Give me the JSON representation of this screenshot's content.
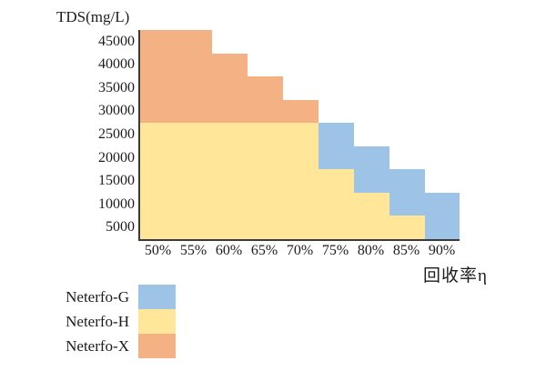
{
  "chart_data": {
    "type": "area",
    "variant": "stacked-step-bands",
    "title": "TDS(mg/L)",
    "xlabel": "回收率η",
    "categories": [
      "50%",
      "55%",
      "60%",
      "65%",
      "70%",
      "75%",
      "80%",
      "85%",
      "90%"
    ],
    "ylim": [
      2500,
      47500
    ],
    "yticks": [
      45000,
      40000,
      35000,
      30000,
      25000,
      20000,
      15000,
      10000,
      5000
    ],
    "grid": false,
    "legend_position": "bottom-left",
    "colors": {
      "axis": "#3a3a3a",
      "text": "#1c1c1c"
    },
    "series": [
      {
        "name": "Neterfo-G",
        "color": "#9DC3E6",
        "bands": [
          null,
          null,
          null,
          null,
          null,
          [
            17500,
            27500
          ],
          [
            12500,
            22500
          ],
          [
            7500,
            17500
          ],
          [
            2500,
            12500
          ]
        ]
      },
      {
        "name": "Neterfo-H",
        "color": "#FFE699",
        "bands": [
          [
            2500,
            27500
          ],
          [
            2500,
            27500
          ],
          [
            2500,
            27500
          ],
          [
            2500,
            27500
          ],
          [
            2500,
            27500
          ],
          [
            2500,
            17500
          ],
          [
            2500,
            12500
          ],
          [
            2500,
            7500
          ],
          null
        ]
      },
      {
        "name": "Neterfo-X",
        "color": "#F4B183",
        "bands": [
          [
            27500,
            47500
          ],
          [
            27500,
            47500
          ],
          [
            27500,
            42500
          ],
          [
            27500,
            37500
          ],
          [
            27500,
            32500
          ],
          null,
          null,
          null,
          null
        ]
      }
    ]
  }
}
